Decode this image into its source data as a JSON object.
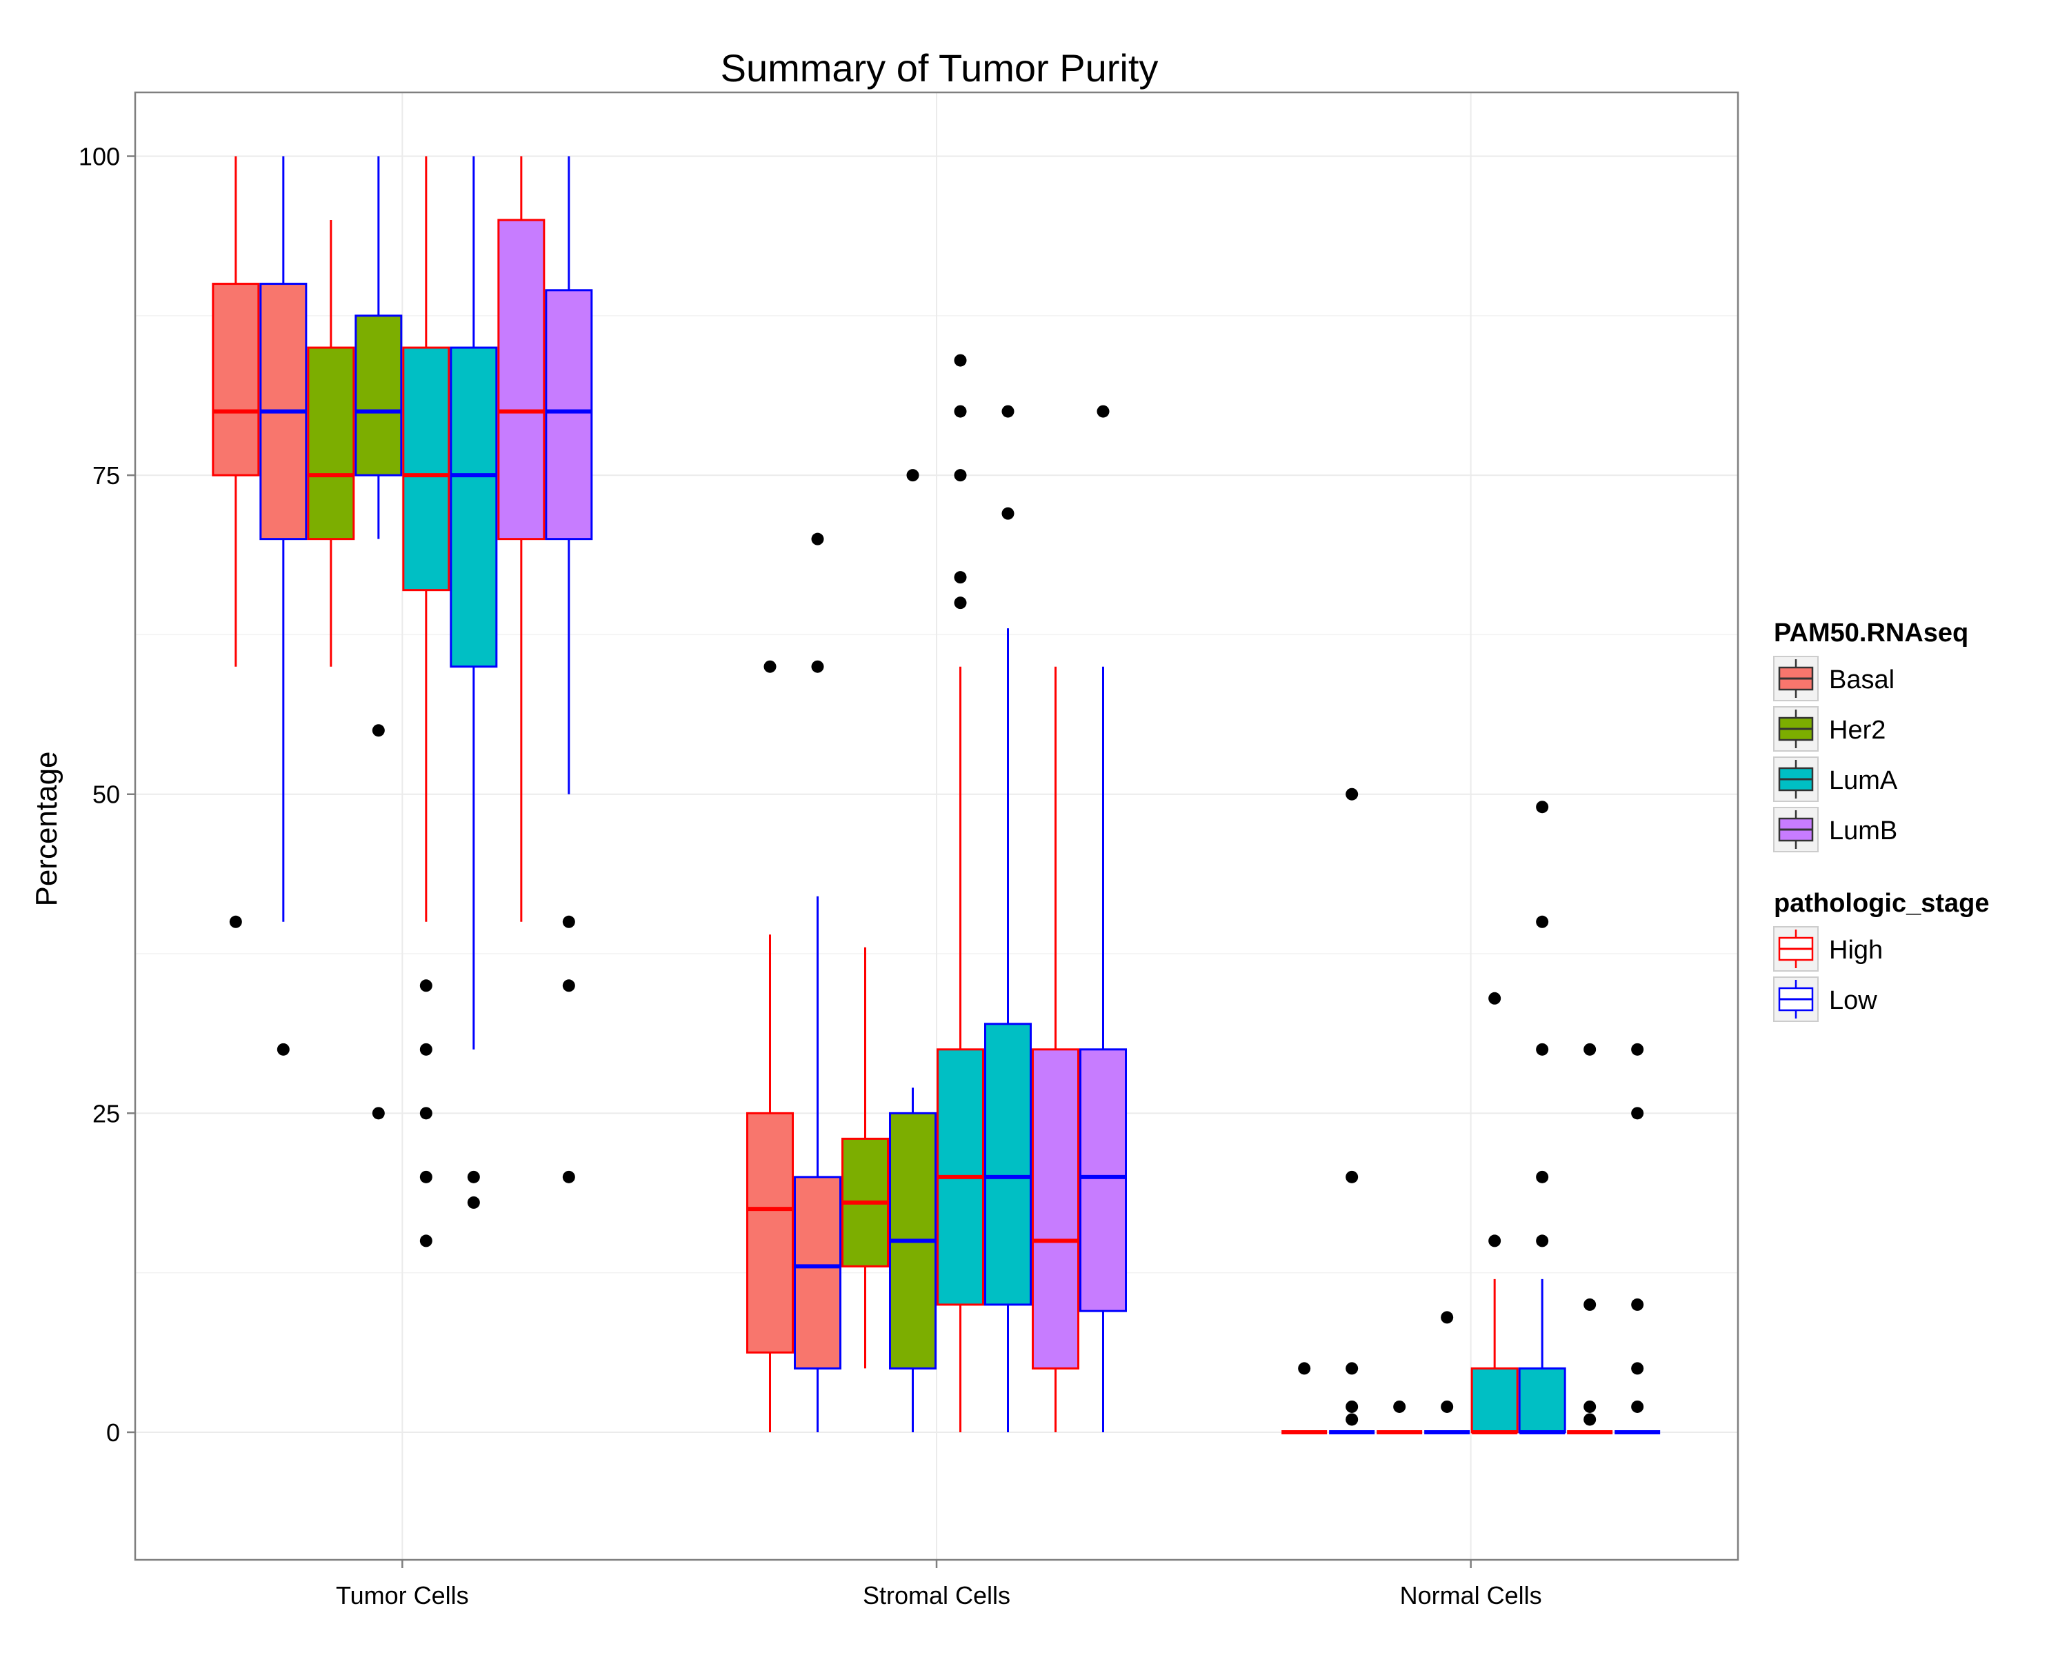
{
  "chart_data": {
    "type": "boxplot",
    "title": "Summary of Tumor Purity",
    "xlabel": "",
    "ylabel": "Percentage",
    "ylim": [
      -10,
      105
    ],
    "yticks": [
      0,
      25,
      50,
      75,
      100
    ],
    "grid": true,
    "legend_position": "right",
    "categories": [
      "Tumor Cells",
      "Stromal Cells",
      "Normal Cells"
    ],
    "fill_legend": {
      "title": "PAM50.RNAseq",
      "items": [
        {
          "name": "Basal",
          "color": "#F8766D"
        },
        {
          "name": "Her2",
          "color": "#7CAE00"
        },
        {
          "name": "LumA",
          "color": "#00BFC4"
        },
        {
          "name": "LumB",
          "color": "#C77CFF"
        }
      ]
    },
    "outline_legend": {
      "title": "pathologic_stage",
      "items": [
        {
          "name": "High",
          "color": "#FF0000"
        },
        {
          "name": "Low",
          "color": "#0000FF"
        }
      ]
    },
    "groups": [
      {
        "category": "Tumor Cells",
        "boxes": [
          {
            "subtype": "Basal",
            "stage": "High",
            "whisker_low": 60,
            "q1": 75,
            "median": 80,
            "q3": 90,
            "whisker_high": 100,
            "outliers": [
              40
            ]
          },
          {
            "subtype": "Basal",
            "stage": "Low",
            "whisker_low": 40,
            "q1": 70,
            "median": 80,
            "q3": 90,
            "whisker_high": 100,
            "outliers": [
              30
            ]
          },
          {
            "subtype": "Her2",
            "stage": "High",
            "whisker_low": 60,
            "q1": 70,
            "median": 75,
            "q3": 85,
            "whisker_high": 95,
            "outliers": []
          },
          {
            "subtype": "Her2",
            "stage": "Low",
            "whisker_low": 70,
            "q1": 75,
            "median": 80,
            "q3": 87.5,
            "whisker_high": 100,
            "outliers": [
              55,
              25
            ]
          },
          {
            "subtype": "LumA",
            "stage": "High",
            "whisker_low": 40,
            "q1": 66,
            "median": 75,
            "q3": 85,
            "whisker_high": 100,
            "outliers": [
              35,
              30,
              25,
              20,
              15
            ]
          },
          {
            "subtype": "LumA",
            "stage": "Low",
            "whisker_low": 30,
            "q1": 60,
            "median": 75,
            "q3": 85,
            "whisker_high": 100,
            "outliers": [
              20,
              18
            ]
          },
          {
            "subtype": "LumB",
            "stage": "High",
            "whisker_low": 40,
            "q1": 70,
            "median": 80,
            "q3": 95,
            "whisker_high": 100,
            "outliers": []
          },
          {
            "subtype": "LumB",
            "stage": "Low",
            "whisker_low": 50,
            "q1": 70,
            "median": 80,
            "q3": 89.5,
            "whisker_high": 100,
            "outliers": [
              40,
              35,
              20
            ]
          }
        ]
      },
      {
        "category": "Stromal Cells",
        "boxes": [
          {
            "subtype": "Basal",
            "stage": "High",
            "whisker_low": 0,
            "q1": 6.25,
            "median": 17.5,
            "q3": 25,
            "whisker_high": 39,
            "outliers": [
              60
            ]
          },
          {
            "subtype": "Basal",
            "stage": "Low",
            "whisker_low": 0,
            "q1": 5,
            "median": 13,
            "q3": 20,
            "whisker_high": 42,
            "outliers": [
              70,
              60
            ]
          },
          {
            "subtype": "Her2",
            "stage": "High",
            "whisker_low": 5,
            "q1": 13,
            "median": 18,
            "q3": 23,
            "whisker_high": 38,
            "outliers": []
          },
          {
            "subtype": "Her2",
            "stage": "Low",
            "whisker_low": 0,
            "q1": 5,
            "median": 15,
            "q3": 25,
            "whisker_high": 27,
            "outliers": [
              75
            ]
          },
          {
            "subtype": "LumA",
            "stage": "High",
            "whisker_low": 0,
            "q1": 10,
            "median": 20,
            "q3": 30,
            "whisker_high": 60,
            "outliers": [
              84,
              80,
              75,
              67,
              65
            ]
          },
          {
            "subtype": "LumA",
            "stage": "Low",
            "whisker_low": 0,
            "q1": 10,
            "median": 20,
            "q3": 32,
            "whisker_high": 63,
            "outliers": [
              80,
              72
            ]
          },
          {
            "subtype": "LumB",
            "stage": "High",
            "whisker_low": 0,
            "q1": 5,
            "median": 15,
            "q3": 30,
            "whisker_high": 60,
            "outliers": []
          },
          {
            "subtype": "LumB",
            "stage": "Low",
            "whisker_low": 0,
            "q1": 9.5,
            "median": 20,
            "q3": 30,
            "whisker_high": 60,
            "outliers": [
              80
            ]
          }
        ]
      },
      {
        "category": "Normal Cells",
        "boxes": [
          {
            "subtype": "Basal",
            "stage": "High",
            "whisker_low": 0,
            "q1": 0,
            "median": 0,
            "q3": 0,
            "whisker_high": 0,
            "outliers": [
              5
            ]
          },
          {
            "subtype": "Basal",
            "stage": "Low",
            "whisker_low": 0,
            "q1": 0,
            "median": 0,
            "q3": 0,
            "whisker_high": 0,
            "outliers": [
              50,
              20,
              5,
              2,
              1
            ]
          },
          {
            "subtype": "Her2",
            "stage": "High",
            "whisker_low": 0,
            "q1": 0,
            "median": 0,
            "q3": 0,
            "whisker_high": 0,
            "outliers": [
              2
            ]
          },
          {
            "subtype": "Her2",
            "stage": "Low",
            "whisker_low": 0,
            "q1": 0,
            "median": 0,
            "q3": 0,
            "whisker_high": 0,
            "outliers": [
              9,
              2
            ]
          },
          {
            "subtype": "LumA",
            "stage": "High",
            "whisker_low": 0,
            "q1": 0,
            "median": 0,
            "q3": 5,
            "whisker_high": 12,
            "outliers": [
              34,
              15
            ]
          },
          {
            "subtype": "LumA",
            "stage": "Low",
            "whisker_low": 0,
            "q1": 0,
            "median": 0,
            "q3": 5,
            "whisker_high": 12,
            "outliers": [
              49,
              40,
              30,
              20,
              15
            ]
          },
          {
            "subtype": "LumB",
            "stage": "High",
            "whisker_low": 0,
            "q1": 0,
            "median": 0,
            "q3": 0,
            "whisker_high": 0,
            "outliers": [
              30,
              10,
              2,
              1
            ]
          },
          {
            "subtype": "LumB",
            "stage": "Low",
            "whisker_low": 0,
            "q1": 0,
            "median": 0,
            "q3": 0,
            "whisker_high": 0,
            "outliers": [
              30,
              25,
              10,
              5,
              2
            ]
          }
        ]
      }
    ]
  }
}
